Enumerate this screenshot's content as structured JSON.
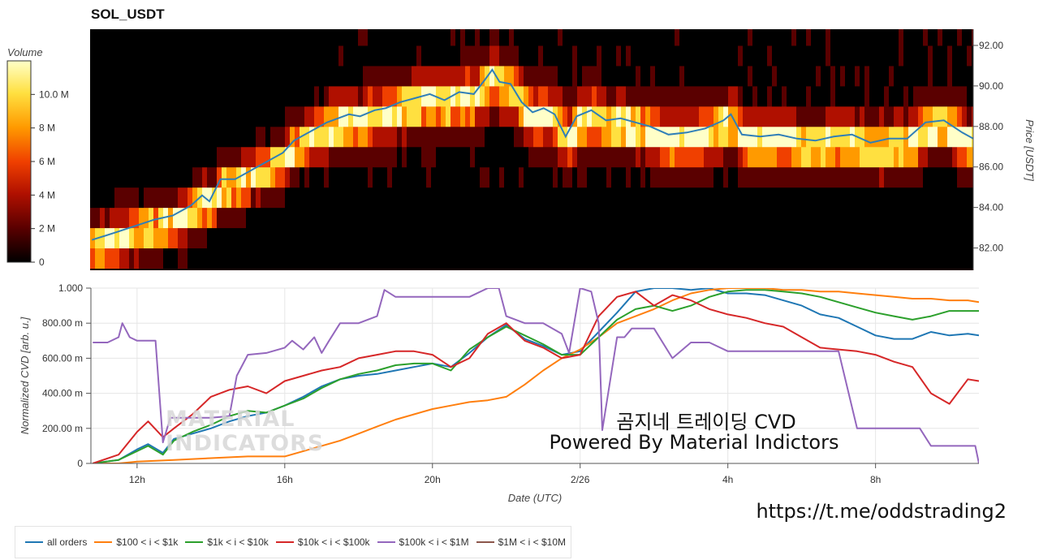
{
  "chart_data": [
    {
      "type": "heatmap",
      "title": "SOL_USDT",
      "ylabel": "Price [USDT]",
      "ylim": [
        80.9,
        92.8
      ],
      "y_ticks": [
        "82.00",
        "84.00",
        "86.00",
        "88.00",
        "90.00",
        "92.00"
      ],
      "colorbar": {
        "label": "Volume",
        "ticks": [
          "0",
          "2 M",
          "4 M",
          "6 M",
          "8 M",
          "10.0 M"
        ],
        "range": [
          0,
          12000000
        ],
        "colors": [
          "#000000",
          "#5a0000",
          "#b01000",
          "#f04000",
          "#ff9a00",
          "#ffe040",
          "#ffffc8"
        ]
      },
      "price_line": {
        "color": "#2f7fb8",
        "x": [
          10.8,
          11.5,
          12.0,
          12.5,
          13.0,
          13.3,
          13.5,
          13.8,
          14.0,
          14.3,
          14.7,
          15.0,
          15.3,
          15.6,
          16.0,
          16.3,
          16.6,
          16.9,
          17.2,
          17.5,
          17.8,
          18.1,
          18.5,
          18.8,
          19.2,
          19.6,
          20.0,
          20.4,
          20.8,
          21.2,
          21.5,
          21.7,
          21.9,
          22.2,
          22.5,
          22.8,
          23.1,
          23.4,
          23.7,
          24.0,
          24.4,
          24.8,
          25.2,
          25.6,
          26.0,
          26.5,
          27.0,
          27.5,
          28.0,
          28.2,
          28.5,
          29.0,
          29.5,
          30.0,
          30.5,
          31.0,
          31.5,
          32.0,
          32.5,
          33.0,
          33.5,
          34.0,
          34.5,
          34.8
        ],
        "y": [
          82.4,
          82.8,
          83.1,
          83.4,
          83.6,
          83.9,
          84.1,
          84.6,
          84.3,
          85.4,
          85.4,
          85.7,
          86.0,
          86.3,
          86.7,
          87.3,
          87.6,
          87.9,
          88.2,
          88.4,
          88.6,
          88.5,
          88.8,
          88.9,
          89.2,
          89.4,
          89.6,
          89.3,
          89.7,
          89.6,
          90.3,
          90.8,
          90.2,
          90.1,
          89.2,
          88.7,
          88.9,
          88.6,
          87.5,
          88.5,
          88.8,
          88.3,
          88.4,
          88.2,
          88.0,
          87.6,
          87.7,
          87.9,
          88.3,
          88.6,
          87.6,
          87.5,
          87.6,
          87.4,
          87.3,
          87.5,
          87.6,
          87.2,
          87.4,
          87.4,
          88.2,
          88.3,
          87.7,
          87.4
        ]
      }
    },
    {
      "type": "line",
      "xlabel": "Date (UTC)",
      "ylabel": "Normalized CVD [arb. u.]",
      "xlim": [
        10.75,
        34.8
      ],
      "ylim": [
        0,
        1.0
      ],
      "x_ticks": [
        {
          "v": 12,
          "label": "12h"
        },
        {
          "v": 16,
          "label": "16h"
        },
        {
          "v": 20,
          "label": "20h"
        },
        {
          "v": 24,
          "label": "2/26"
        },
        {
          "v": 28,
          "label": "4h"
        },
        {
          "v": 32,
          "label": "8h"
        }
      ],
      "y_ticks": [
        {
          "v": 0,
          "label": "0"
        },
        {
          "v": 0.2,
          "label": "200.00 m"
        },
        {
          "v": 0.4,
          "label": "400.00 m"
        },
        {
          "v": 0.6,
          "label": "600.00 m"
        },
        {
          "v": 0.8,
          "label": "800.00 m"
        },
        {
          "v": 1.0,
          "label": "1.000"
        }
      ],
      "series": [
        {
          "name": "all orders",
          "color": "#1f77b4",
          "x": [
            10.8,
            11.5,
            12.0,
            12.3,
            12.7,
            13.0,
            13.5,
            14.0,
            14.5,
            15.0,
            15.5,
            16.0,
            16.5,
            17.0,
            17.5,
            18.0,
            18.5,
            19.0,
            19.5,
            20.0,
            20.5,
            21.0,
            21.5,
            22.0,
            22.5,
            23.0,
            23.5,
            24.0,
            24.5,
            25.0,
            25.5,
            26.0,
            26.5,
            27.0,
            27.5,
            28.0,
            28.5,
            29.0,
            29.5,
            30.0,
            30.5,
            31.0,
            31.5,
            32.0,
            32.5,
            33.0,
            33.5,
            34.0,
            34.5,
            34.8
          ],
          "y": [
            0.0,
            0.02,
            0.08,
            0.11,
            0.06,
            0.14,
            0.17,
            0.2,
            0.24,
            0.27,
            0.29,
            0.33,
            0.38,
            0.44,
            0.48,
            0.5,
            0.51,
            0.53,
            0.55,
            0.57,
            0.55,
            0.63,
            0.72,
            0.79,
            0.71,
            0.67,
            0.62,
            0.64,
            0.75,
            0.86,
            0.98,
            1.0,
            1.0,
            0.99,
            1.0,
            0.97,
            0.97,
            0.96,
            0.93,
            0.9,
            0.85,
            0.83,
            0.78,
            0.73,
            0.71,
            0.71,
            0.75,
            0.73,
            0.74,
            0.73
          ]
        },
        {
          "name": "$100 < i < $1k",
          "color": "#ff7f0e",
          "x": [
            10.8,
            11.5,
            12.0,
            13.0,
            14.0,
            15.0,
            16.0,
            16.5,
            17.0,
            17.5,
            18.0,
            18.5,
            19.0,
            19.5,
            20.0,
            20.5,
            21.0,
            21.5,
            22.0,
            22.5,
            23.0,
            23.5,
            24.0,
            24.5,
            25.0,
            25.5,
            26.0,
            26.5,
            27.0,
            27.5,
            28.0,
            28.5,
            29.0,
            29.5,
            30.0,
            30.5,
            31.0,
            31.5,
            32.0,
            32.5,
            33.0,
            33.5,
            34.0,
            34.5,
            34.8
          ],
          "y": [
            0.0,
            0.0,
            0.01,
            0.02,
            0.03,
            0.04,
            0.04,
            0.07,
            0.1,
            0.13,
            0.17,
            0.21,
            0.25,
            0.28,
            0.31,
            0.33,
            0.35,
            0.36,
            0.38,
            0.45,
            0.53,
            0.6,
            0.65,
            0.72,
            0.8,
            0.84,
            0.88,
            0.93,
            0.97,
            0.99,
            1.0,
            1.0,
            1.0,
            0.99,
            0.99,
            0.98,
            0.98,
            0.97,
            0.96,
            0.95,
            0.94,
            0.94,
            0.93,
            0.93,
            0.92
          ]
        },
        {
          "name": "$1k < i < $10k",
          "color": "#2ca02c",
          "x": [
            10.8,
            11.5,
            12.0,
            12.3,
            12.7,
            13.0,
            13.5,
            14.0,
            14.5,
            15.0,
            15.5,
            16.0,
            16.5,
            17.0,
            17.5,
            18.0,
            18.5,
            19.0,
            19.5,
            20.0,
            20.5,
            21.0,
            21.5,
            22.0,
            22.5,
            23.0,
            23.5,
            24.0,
            24.5,
            25.0,
            25.5,
            26.0,
            26.5,
            27.0,
            27.5,
            28.0,
            28.5,
            29.0,
            29.5,
            30.0,
            30.5,
            31.0,
            31.5,
            32.0,
            32.5,
            33.0,
            33.5,
            34.0,
            34.5,
            34.8
          ],
          "y": [
            0.0,
            0.02,
            0.07,
            0.1,
            0.05,
            0.13,
            0.18,
            0.22,
            0.27,
            0.3,
            0.29,
            0.33,
            0.37,
            0.43,
            0.48,
            0.51,
            0.53,
            0.56,
            0.57,
            0.57,
            0.53,
            0.65,
            0.72,
            0.78,
            0.73,
            0.68,
            0.62,
            0.62,
            0.72,
            0.82,
            0.88,
            0.9,
            0.87,
            0.9,
            0.95,
            0.98,
            0.99,
            0.99,
            0.98,
            0.97,
            0.95,
            0.92,
            0.89,
            0.86,
            0.84,
            0.82,
            0.84,
            0.87,
            0.87,
            0.87
          ]
        },
        {
          "name": "$10k < i < $100k",
          "color": "#d62728",
          "x": [
            10.8,
            11.5,
            12.0,
            12.3,
            12.7,
            13.0,
            13.5,
            14.0,
            14.5,
            15.0,
            15.5,
            16.0,
            16.5,
            17.0,
            17.5,
            18.0,
            18.5,
            19.0,
            19.5,
            20.0,
            20.5,
            21.0,
            21.5,
            22.0,
            22.5,
            23.0,
            23.5,
            24.0,
            24.5,
            25.0,
            25.5,
            26.0,
            26.5,
            27.0,
            27.5,
            28.0,
            28.5,
            29.0,
            29.5,
            30.0,
            30.5,
            31.0,
            31.5,
            32.0,
            32.5,
            33.0,
            33.5,
            34.0,
            34.5,
            34.8
          ],
          "y": [
            0.0,
            0.05,
            0.18,
            0.24,
            0.15,
            0.2,
            0.28,
            0.38,
            0.42,
            0.44,
            0.4,
            0.47,
            0.5,
            0.53,
            0.55,
            0.6,
            0.62,
            0.64,
            0.64,
            0.62,
            0.55,
            0.6,
            0.74,
            0.8,
            0.7,
            0.66,
            0.6,
            0.62,
            0.84,
            0.95,
            0.98,
            0.9,
            0.96,
            0.93,
            0.88,
            0.85,
            0.83,
            0.8,
            0.78,
            0.72,
            0.66,
            0.65,
            0.64,
            0.62,
            0.58,
            0.55,
            0.4,
            0.34,
            0.48,
            0.47
          ]
        },
        {
          "name": "$100k < i < $1M",
          "color": "#9467bd",
          "x": [
            10.8,
            11.2,
            11.5,
            11.6,
            11.8,
            12.0,
            12.5,
            12.7,
            12.9,
            13.5,
            14.0,
            14.5,
            14.7,
            15.0,
            15.5,
            16.0,
            16.2,
            16.5,
            16.8,
            17.0,
            17.2,
            17.5,
            18.0,
            18.5,
            18.7,
            19.0,
            19.5,
            20.0,
            20.5,
            21.0,
            21.5,
            21.8,
            22.0,
            22.5,
            23.0,
            23.5,
            23.7,
            24.0,
            24.3,
            24.5,
            24.6,
            25.0,
            25.2,
            25.4,
            25.5,
            26.0,
            26.5,
            27.0,
            27.5,
            28.0,
            28.5,
            29.0,
            29.5,
            30.0,
            30.5,
            30.8,
            31.0,
            31.5,
            32.0,
            32.5,
            33.0,
            33.2,
            33.5,
            34.0,
            34.5,
            34.7,
            34.8
          ],
          "y": [
            0.69,
            0.69,
            0.72,
            0.8,
            0.72,
            0.7,
            0.7,
            0.12,
            0.26,
            0.26,
            0.26,
            0.27,
            0.5,
            0.62,
            0.63,
            0.66,
            0.7,
            0.65,
            0.72,
            0.63,
            0.7,
            0.8,
            0.8,
            0.84,
            0.99,
            0.95,
            0.95,
            0.95,
            0.95,
            0.95,
            1.0,
            1.0,
            0.84,
            0.8,
            0.8,
            0.74,
            0.63,
            1.0,
            0.98,
            0.8,
            0.19,
            0.72,
            0.72,
            0.77,
            0.77,
            0.77,
            0.6,
            0.69,
            0.69,
            0.64,
            0.64,
            0.64,
            0.64,
            0.64,
            0.64,
            0.64,
            0.64,
            0.2,
            0.2,
            0.2,
            0.2,
            0.2,
            0.1,
            0.1,
            0.1,
            0.1,
            0.0
          ]
        },
        {
          "name": "$1M < i < $10M",
          "color": "#8c564b",
          "x": [],
          "y": []
        }
      ]
    }
  ],
  "watermark": {
    "line1": "MATERIAL",
    "line2": "INDICATORS"
  },
  "overlay": {
    "line1": "곰지네 트레이딩 CVD",
    "line2": "Powered By Material Indictors",
    "telegram": "https://t.me/oddstrading2"
  }
}
